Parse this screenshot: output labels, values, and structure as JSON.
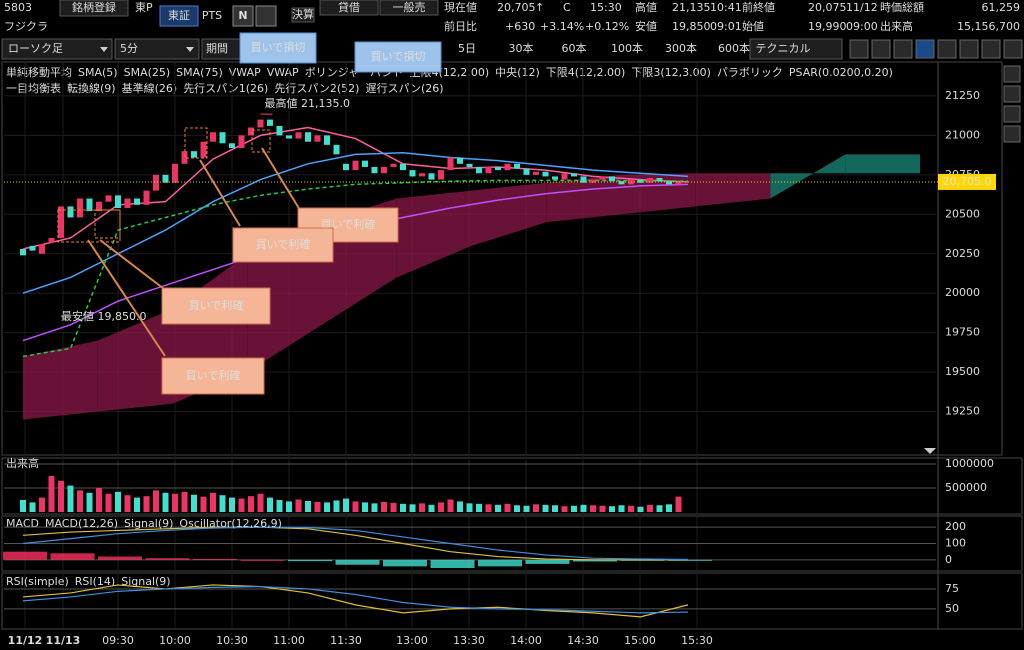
{
  "header": {
    "code": "5803",
    "register": "銘柄登録",
    "market": "東P",
    "exchange": "東証",
    "pts": "PTS",
    "n_icon": "N",
    "earnings": "決算",
    "margin": "貸借",
    "general_sell": "一般売",
    "name": "フジクラ",
    "quote": {
      "current_label": "現在値",
      "current": "20,705",
      "arrow": "↑",
      "c": "C",
      "time": "15:30",
      "high_label": "高値",
      "high": "21,135",
      "high_time": "10:41",
      "prev_label": "前終値",
      "prev": "20,075",
      "prev_date": "11/12",
      "mcap_label": "時価総額",
      "mcap": "61,259",
      "change_label": "前日比",
      "change": "+630",
      "change_pct": "+3.14%",
      "pts_pct": "+0.12%",
      "low_label": "安値",
      "low": "19,850",
      "low_time": "09:01",
      "open_label": "始値",
      "open": "19,990",
      "open_time": "09:00",
      "volume_label": "出来高",
      "volume": "15,156,700"
    }
  },
  "toolbar": {
    "chart_kind": "ローソク足",
    "interval": "5分",
    "period": "期間",
    "ranges": [
      "5日",
      "30本",
      "60本",
      "100本",
      "300本",
      "600本"
    ],
    "technical": "テクニカル"
  },
  "legend": {
    "row1": [
      {
        "text": "単純移動平均",
        "color": "#dddddd"
      },
      {
        "text": "SMA(5)",
        "color": "#ff5fa0"
      },
      {
        "text": "SMA(25)",
        "color": "#4aa3ff"
      },
      {
        "text": "SMA(75)",
        "color": "#c050ff"
      },
      {
        "text": "VWAP",
        "color": "#dddddd"
      },
      {
        "text": "VWAP",
        "color": "#22cc44"
      },
      {
        "text": "ボリンジャーバンド",
        "color": "#dddddd"
      },
      {
        "text": "上限4(12,2.00)",
        "color": "#4aa3ff"
      },
      {
        "text": "中央(12)",
        "color": "#ff5fa0"
      },
      {
        "text": "下限4(12,2.00)",
        "color": "#4aa3ff"
      },
      {
        "text": "下限3(12,3.00)",
        "color": "#ff7040"
      },
      {
        "text": "パラボリック",
        "color": "#dddddd"
      },
      {
        "text": "PSAR(0.0200,0.20)",
        "color": "#e0c030"
      }
    ],
    "row2": [
      {
        "text": "一目均衡表",
        "color": "#dddddd"
      },
      {
        "text": "転換線(9)",
        "color": "#dddddd"
      },
      {
        "text": "基準線(26)",
        "color": "#e0c030"
      },
      {
        "text": "先行スパン1(26)",
        "color": "#ff4060"
      },
      {
        "text": "先行スパン2(52)",
        "color": "#30c0a0"
      },
      {
        "text": "遅行スパン(26)",
        "color": "#4aa3ff"
      }
    ]
  },
  "callouts": {
    "stop": [
      "買いで損切",
      "買いで損切"
    ],
    "take": [
      "買いで利確",
      "買いで利確",
      "買いで利確",
      "買いで利確"
    ]
  },
  "chart_data": [
    {
      "type": "candlestick",
      "up_color": "#ee3366",
      "down_color": "#40e0d0",
      "ylim": [
        18975,
        21465
      ],
      "yticks": [
        21250,
        21000,
        20750,
        20500,
        20250,
        20000,
        19750,
        19500,
        19250
      ],
      "grid": true,
      "open": [
        20280,
        20300,
        20250,
        20320,
        20350,
        20550,
        20480,
        20600,
        20520,
        20580,
        20620,
        20540,
        20600,
        20560,
        20650,
        20750,
        20700,
        20820,
        20900,
        20860,
        20960,
        21020,
        20950,
        20920,
        21000,
        21050,
        21100,
        21060,
        21000,
        20980,
        21020,
        20960,
        21000,
        20940,
        20820,
        20780,
        20840,
        20800,
        20760,
        20800,
        20820,
        20780,
        20740,
        20760,
        20720,
        20780,
        20860,
        20820,
        20800,
        20760,
        20800,
        20780,
        20820,
        20790,
        20750,
        20770,
        20740,
        20720,
        20760,
        20740,
        20700,
        20720,
        20740,
        20710,
        20690,
        20720,
        20700,
        20730,
        20710,
        20690
      ],
      "close": [
        20240,
        20270,
        20310,
        20350,
        20550,
        20480,
        20600,
        20520,
        20580,
        20620,
        20540,
        20600,
        20560,
        20650,
        20750,
        20700,
        20820,
        20900,
        20860,
        20960,
        21020,
        20950,
        20920,
        21000,
        21050,
        21100,
        21060,
        21000,
        20980,
        21020,
        20960,
        21000,
        20940,
        20880,
        20780,
        20840,
        20800,
        20760,
        20800,
        20820,
        20780,
        20740,
        20760,
        20720,
        20780,
        20860,
        20820,
        20800,
        20760,
        20800,
        20780,
        20820,
        20790,
        20750,
        20770,
        20740,
        20720,
        20760,
        20740,
        20700,
        20720,
        20740,
        20710,
        20690,
        20720,
        20700,
        20730,
        20710,
        20690,
        20705
      ],
      "series": [
        {
          "color": "#ff5fa0",
          "values": [
            20280,
            20350,
            20560,
            20580,
            20850,
            21000,
            21050,
            20980,
            20820,
            20790,
            20800,
            20780,
            20740,
            20720,
            20705
          ]
        },
        {
          "color": "#4aa3ff",
          "values": [
            20000,
            20100,
            20250,
            20400,
            20580,
            20720,
            20820,
            20880,
            20890,
            20860,
            20840,
            20810,
            20780,
            20760,
            20740
          ]
        },
        {
          "color": "#c050ff",
          "values": [
            19700,
            19800,
            19950,
            20050,
            20150,
            20250,
            20350,
            20420,
            20480,
            20540,
            20590,
            20630,
            20660,
            20680,
            20690
          ]
        },
        {
          "color": "#22cc44",
          "dash": true,
          "values": [
            19600,
            19650,
            20400,
            20480,
            20560,
            20620,
            20660,
            20690,
            20700,
            20710,
            20715,
            20715,
            20715,
            20712,
            20710
          ]
        }
      ],
      "cloud": {
        "span1": [
          19200,
          19250,
          19300,
          19500,
          19800,
          20100,
          20300,
          20450,
          20500,
          20550,
          20600,
          20880,
          20880
        ],
        "span2": [
          19600,
          19700,
          19900,
          20250,
          20450,
          20600,
          20650,
          20700,
          20750,
          20760,
          20760,
          20760,
          20760
        ],
        "colors": [
          "#8a1848",
          "#1a8a7a"
        ]
      },
      "high": {
        "value": 21135,
        "label": "最高値 21,135.0"
      },
      "low": {
        "value": 19850,
        "label": "最安値 19,850.0"
      },
      "last": {
        "value": 20705,
        "label": "20,705.0"
      },
      "x_labels": [
        "11/12",
        "11/13",
        "09:30",
        "10:00",
        "10:30",
        "11:00",
        "11:30",
        "13:00",
        "13:30",
        "14:00",
        "14:30",
        "15:00",
        "15:30"
      ]
    },
    {
      "type": "bar",
      "title": "出来高",
      "ylim": [
        0,
        1000000
      ],
      "yticks": [
        1000000,
        500000
      ],
      "values": [
        250000,
        200000,
        300000,
        750000,
        650000,
        550000,
        450000,
        400000,
        500000,
        380000,
        420000,
        350000,
        300000,
        330000,
        450000,
        400000,
        380000,
        420000,
        360000,
        320000,
        400000,
        350000,
        300000,
        280000,
        330000,
        380000,
        300000,
        250000,
        220000,
        260000,
        230000,
        210000,
        200000,
        240000,
        280000,
        220000,
        200000,
        180000,
        210000,
        190000,
        170000,
        160000,
        180000,
        150000,
        200000,
        260000,
        220000,
        180000,
        170000,
        160000,
        150000,
        170000,
        140000,
        130000,
        160000,
        150000,
        140000,
        120000,
        130000,
        150000,
        140000,
        130000,
        120000,
        140000,
        130000,
        110000,
        150000,
        140000,
        160000,
        320000
      ]
    },
    {
      "type": "line",
      "title": "MACD",
      "ylim": [
        -50,
        250
      ],
      "yticks": [
        200,
        100,
        0
      ],
      "series": [
        {
          "name": "MACD(12,26)",
          "color": "#d8c040",
          "values": [
            150,
            170,
            180,
            190,
            200,
            200,
            190,
            150,
            100,
            50,
            20,
            5,
            0,
            0,
            0
          ]
        },
        {
          "name": "Signal(9)",
          "color": "#3d8fe0",
          "values": [
            100,
            130,
            160,
            180,
            195,
            200,
            198,
            180,
            140,
            100,
            60,
            30,
            10,
            5,
            2
          ]
        }
      ],
      "oscillator": {
        "name": "Oscillator(12,26,9)",
        "color": "#ff3060",
        "neg_color": "#40e0d0",
        "values": [
          50,
          40,
          20,
          10,
          5,
          0,
          -8,
          -30,
          -40,
          -50,
          -40,
          -25,
          -10,
          -5,
          -2
        ]
      }
    },
    {
      "type": "line",
      "title": "RSI(simple)",
      "ylim": [
        26,
        92.5
      ],
      "yticks": [
        75,
        50
      ],
      "series": [
        {
          "name": "RSI(14)",
          "color": "#e0c030",
          "values": [
            65,
            70,
            80,
            75,
            80,
            78,
            70,
            55,
            45,
            50,
            52,
            48,
            45,
            40,
            55
          ]
        },
        {
          "name": "Signal(9)",
          "color": "#3d8fe0",
          "values": [
            60,
            65,
            72,
            75,
            77,
            78,
            75,
            68,
            58,
            52,
            50,
            49,
            47,
            45,
            46
          ]
        }
      ]
    }
  ]
}
